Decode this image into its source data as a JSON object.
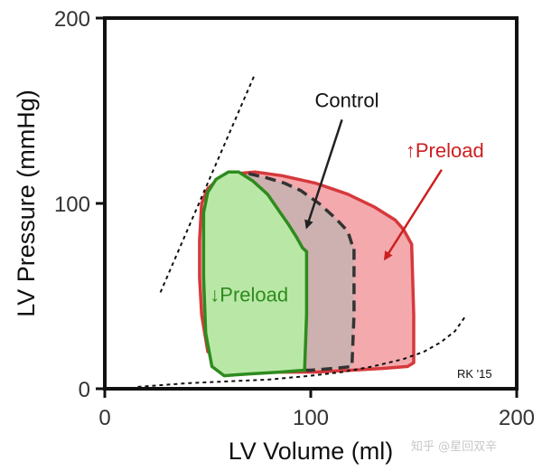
{
  "chart_data": {
    "type": "line",
    "xlabel": "LV Volume (ml)",
    "ylabel": "LV Pressure (mmHg)",
    "xlim": [
      0,
      200
    ],
    "ylim": [
      0,
      200
    ],
    "x_ticks": [
      "0",
      "100",
      "200"
    ],
    "y_ticks": [
      "0",
      "100",
      "200"
    ],
    "grid": false,
    "series": [
      {
        "name": "↑Preload",
        "color": "#d6393c",
        "fill": "#f4a9ad",
        "x": [
          148,
          145,
          141,
          131,
          118,
          102,
          86,
          73,
          63,
          55,
          50,
          47,
          46,
          46,
          47,
          50,
          62,
          82,
          102,
          120,
          136,
          147,
          150,
          150,
          149
        ],
        "y": [
          80,
          86,
          91,
          98,
          105,
          111,
          115,
          117,
          116,
          113,
          108,
          100,
          80,
          60,
          40,
          20,
          10,
          9,
          9,
          10,
          11,
          12,
          14,
          40,
          78
        ]
      },
      {
        "name": "Control",
        "color": "#333333",
        "fill": "#c9b1b0",
        "x": [
          120,
          118,
          112,
          104,
          95,
          87,
          78,
          70,
          62,
          56,
          58,
          70,
          85,
          100,
          112,
          120,
          121,
          121
        ],
        "y": [
          78,
          85,
          92,
          100,
          107,
          111,
          114,
          116,
          114,
          110,
          9,
          9,
          10,
          10,
          11,
          12,
          40,
          76
        ]
      },
      {
        "name": "↓Preload",
        "color": "#2e8b1e",
        "fill": "#b9e8a6",
        "x": [
          96,
          93,
          89,
          84,
          79,
          72,
          65,
          60,
          54,
          50,
          48,
          48,
          49,
          52,
          58,
          70,
          85,
          97,
          98,
          98
        ],
        "y": [
          76,
          82,
          89,
          97,
          105,
          112,
          117,
          117,
          113,
          106,
          95,
          60,
          30,
          12,
          7,
          8,
          9,
          10,
          40,
          74
        ]
      }
    ],
    "edpvr": {
      "x": [
        16,
        40,
        60,
        80,
        100,
        115,
        130,
        145,
        155,
        163,
        170,
        175
      ],
      "y": [
        1,
        3,
        4,
        5,
        7,
        9,
        12,
        16,
        20,
        25,
        31,
        39
      ]
    },
    "espvr": {
      "x": [
        27,
        73
      ],
      "y": [
        52,
        170
      ]
    },
    "annotations": [
      {
        "text": "Control",
        "color": "#111111",
        "x": 102,
        "y": 152,
        "arrow_to": [
          98,
          87
        ]
      },
      {
        "text": "↑Preload",
        "color": "#cc1f1f",
        "x": 146,
        "y": 125,
        "arrow_to": [
          136,
          70
        ]
      },
      {
        "text": "↓Preload",
        "color": "#2e8b1e",
        "x": 51,
        "y": 47
      }
    ],
    "credit": "RK '15"
  },
  "watermark": "知乎 @星回双辛"
}
